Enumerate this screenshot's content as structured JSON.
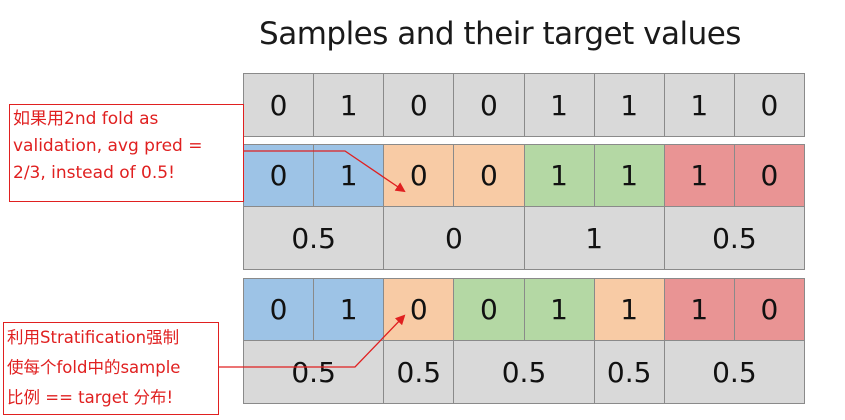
{
  "title": "Samples and their target values",
  "colors": {
    "gray": "#d9d9d9",
    "blue": "#9dc3e6",
    "orange": "#f8cba5",
    "green": "#b4d8a4",
    "red": "#e99494",
    "annotation_red": "#e02020"
  },
  "rows": {
    "targets": [
      {
        "value": "0",
        "color": "gray"
      },
      {
        "value": "1",
        "color": "gray"
      },
      {
        "value": "0",
        "color": "gray"
      },
      {
        "value": "0",
        "color": "gray"
      },
      {
        "value": "1",
        "color": "gray"
      },
      {
        "value": "1",
        "color": "gray"
      },
      {
        "value": "1",
        "color": "gray"
      },
      {
        "value": "0",
        "color": "gray"
      }
    ],
    "folds_unstratified": [
      {
        "value": "0",
        "color": "blue"
      },
      {
        "value": "1",
        "color": "blue"
      },
      {
        "value": "0",
        "color": "orange"
      },
      {
        "value": "0",
        "color": "orange"
      },
      {
        "value": "1",
        "color": "green"
      },
      {
        "value": "1",
        "color": "green"
      },
      {
        "value": "1",
        "color": "red"
      },
      {
        "value": "0",
        "color": "red"
      }
    ],
    "avg_unstratified": [
      {
        "value": "0.5",
        "span": 2
      },
      {
        "value": "0",
        "span": 2
      },
      {
        "value": "1",
        "span": 2
      },
      {
        "value": "0.5",
        "span": 2
      }
    ],
    "folds_stratified": [
      {
        "value": "0",
        "color": "blue"
      },
      {
        "value": "1",
        "color": "blue"
      },
      {
        "value": "0",
        "color": "orange"
      },
      {
        "value": "0",
        "color": "green"
      },
      {
        "value": "1",
        "color": "green"
      },
      {
        "value": "1",
        "color": "orange"
      },
      {
        "value": "1",
        "color": "red"
      },
      {
        "value": "0",
        "color": "red"
      }
    ],
    "avg_stratified": [
      {
        "value": "0.5",
        "span": 2
      },
      {
        "value": "0.5",
        "span": 1
      },
      {
        "value": "0.5",
        "span": 2
      },
      {
        "value": "0.5",
        "span": 1
      },
      {
        "value": "0.5",
        "span": 2
      }
    ]
  },
  "annotations": {
    "top": [
      "如果用2nd fold as",
      "validation, avg pred =",
      "2/3, instead of 0.5!"
    ],
    "bottom": [
      "利用Stratification强制",
      "使每个fold中的sample",
      "比例 == target 分布!"
    ]
  }
}
